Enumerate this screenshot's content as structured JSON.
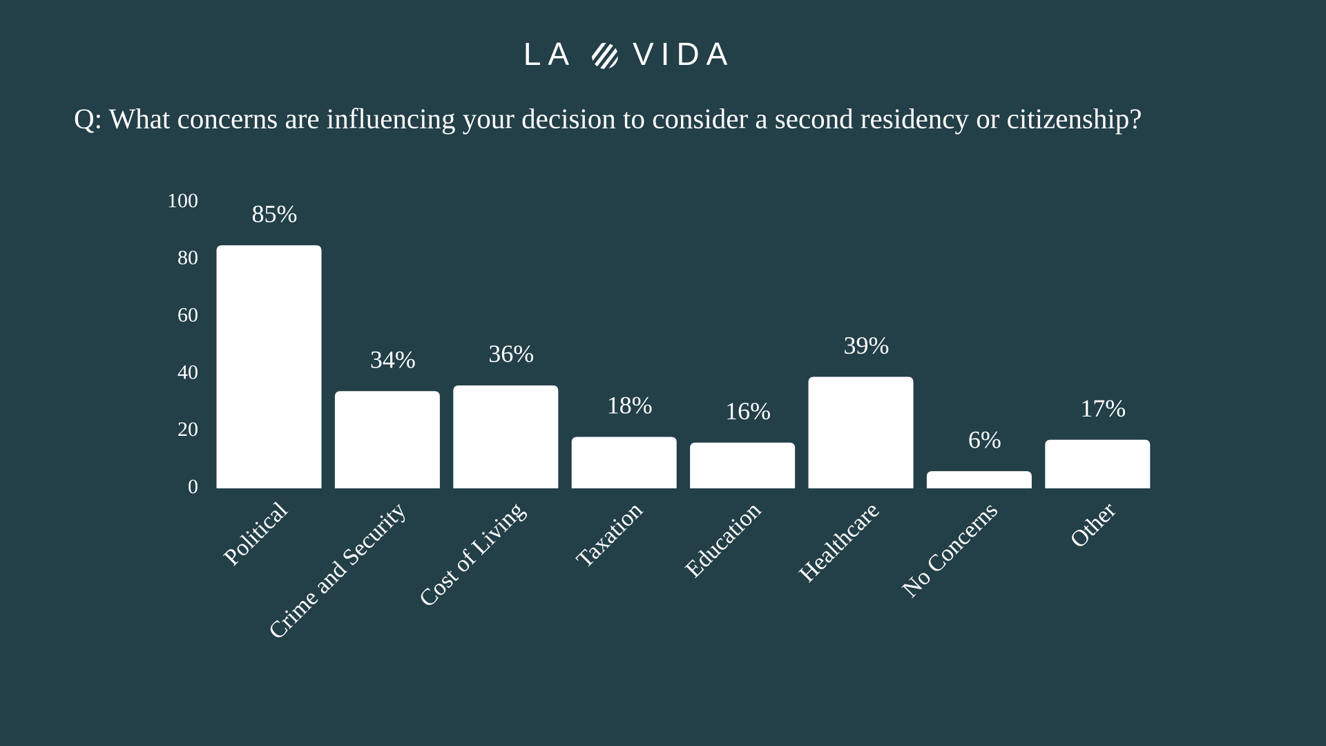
{
  "header": {
    "brand_left": "LA",
    "brand_right": "VIDA"
  },
  "chart_data": {
    "type": "bar",
    "title": "Q: What concerns are influencing your decision to consider a second residency or citizenship?",
    "categories": [
      "Political",
      "Crime and Security",
      "Cost of Living",
      "Taxation",
      "Education",
      "Healthcare",
      "No Concerns",
      "Other"
    ],
    "values": [
      85,
      34,
      36,
      18,
      16,
      39,
      6,
      17
    ],
    "value_labels": [
      "85%",
      "34%",
      "36%",
      "18%",
      "16%",
      "39%",
      "6%",
      "17%"
    ],
    "color": "#ffffff",
    "ylim": [
      0,
      100
    ],
    "yticks": [
      0,
      20,
      40,
      60,
      80,
      100
    ],
    "grid": false
  }
}
